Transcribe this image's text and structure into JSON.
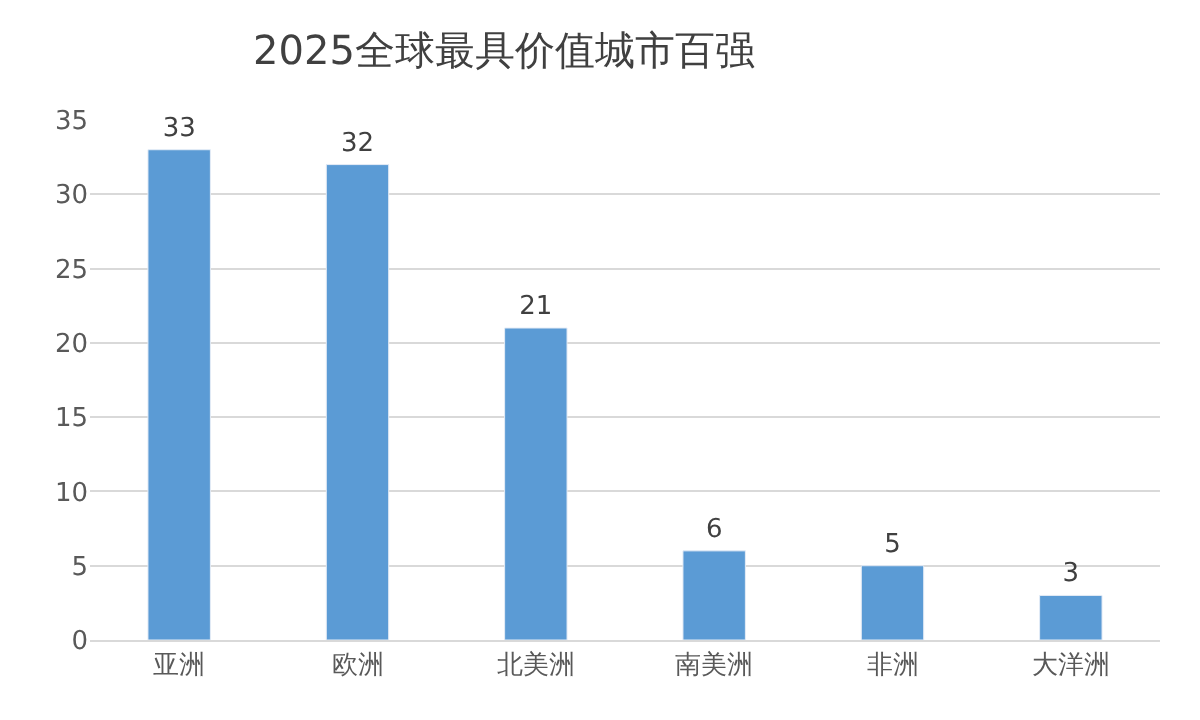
{
  "chart_data": {
    "type": "bar",
    "title": "2025全球最具价值城市百强",
    "categories": [
      "亚洲",
      "欧洲",
      "北美洲",
      "南美洲",
      "非洲",
      "大洋洲"
    ],
    "values": [
      33,
      32,
      21,
      6,
      5,
      3
    ],
    "color": "#5b9bd5",
    "ylim": [
      0,
      35
    ],
    "yticks": [
      0,
      5,
      10,
      15,
      20,
      25,
      30,
      35
    ],
    "grid": "y",
    "data_labels": true
  }
}
